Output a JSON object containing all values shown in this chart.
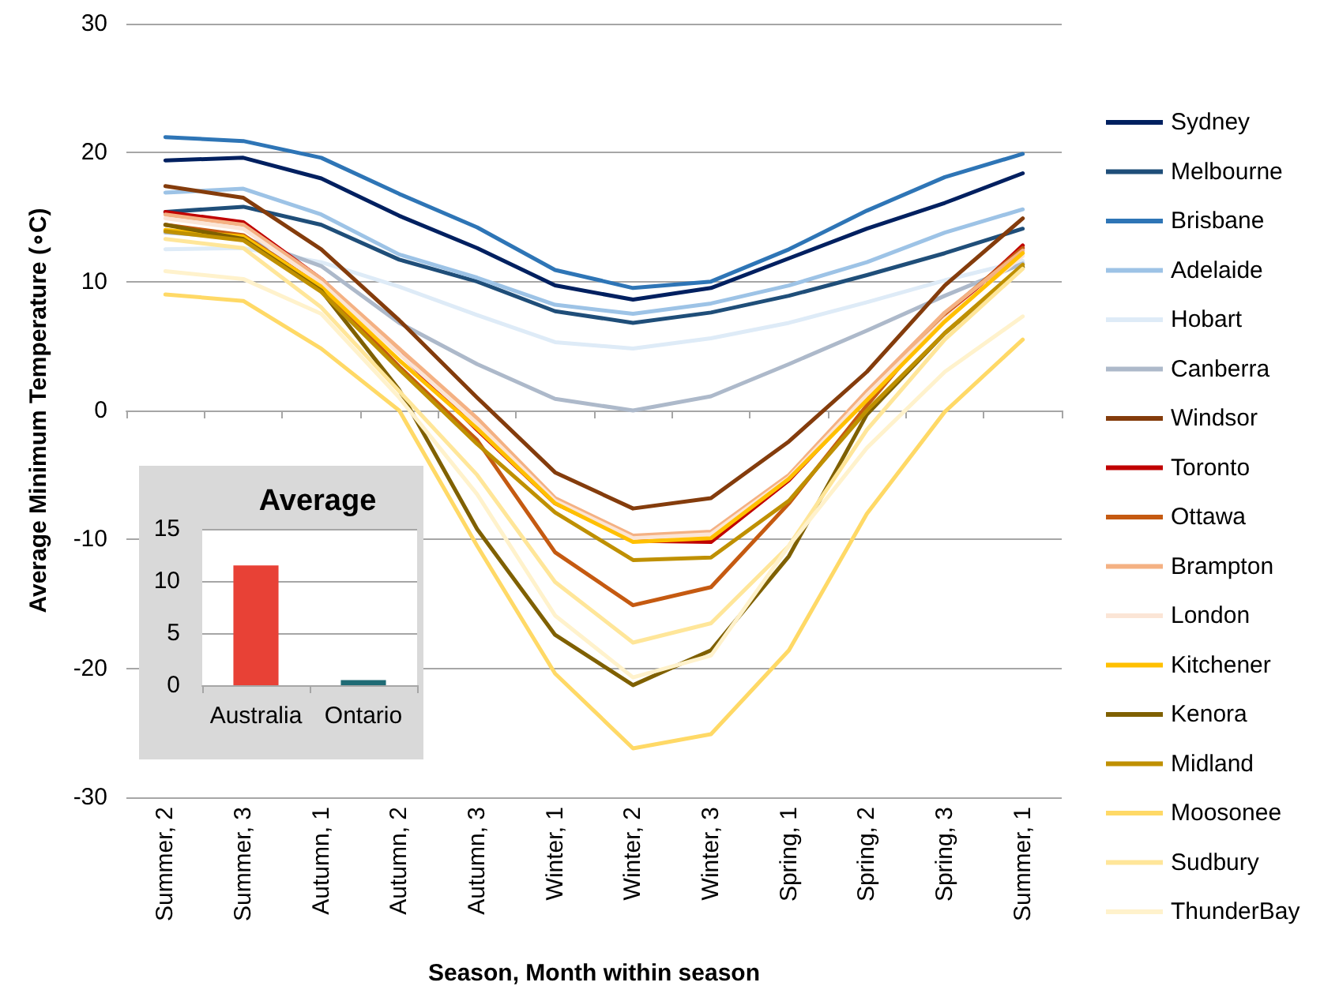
{
  "chart_data": [
    {
      "type": "line",
      "xlabel": "Season, Month within season",
      "ylabel": "Average Minimum Temperature (∘C)",
      "categories": [
        "Summer, 2",
        "Summer, 3",
        "Autumn, 1",
        "Autumn, 2",
        "Autumn, 3",
        "Winter, 1",
        "Winter, 2",
        "Winter, 3",
        "Spring, 1",
        "Spring, 2",
        "Spring, 3",
        "Summer, 1"
      ],
      "series": [
        {
          "name": "Sydney",
          "color": "#002060",
          "values": [
            19.4,
            19.6,
            18.0,
            15.1,
            12.6,
            9.7,
            8.6,
            9.5,
            11.8,
            14.1,
            16.1,
            18.4
          ]
        },
        {
          "name": "Melbourne",
          "color": "#1f4e79",
          "values": [
            15.4,
            15.8,
            14.4,
            11.7,
            10.0,
            7.7,
            6.8,
            7.6,
            8.9,
            10.5,
            12.2,
            14.1
          ]
        },
        {
          "name": "Brisbane",
          "color": "#2e75b6",
          "values": [
            21.2,
            20.9,
            19.6,
            16.8,
            14.2,
            10.9,
            9.5,
            10.0,
            12.5,
            15.5,
            18.1,
            19.9
          ]
        },
        {
          "name": "Adelaide",
          "color": "#9dc3e6",
          "values": [
            16.9,
            17.2,
            15.2,
            12.1,
            10.3,
            8.2,
            7.5,
            8.3,
            9.7,
            11.5,
            13.8,
            15.6
          ]
        },
        {
          "name": "Hobart",
          "color": "#deebf7",
          "values": [
            12.5,
            12.6,
            11.5,
            9.6,
            7.4,
            5.3,
            4.8,
            5.6,
            6.8,
            8.4,
            10.1,
            11.6
          ]
        },
        {
          "name": "Canberra",
          "color": "#adb9ca",
          "values": [
            13.8,
            13.4,
            11.2,
            6.8,
            3.6,
            0.9,
            0.0,
            1.1,
            3.6,
            6.2,
            8.9,
            11.4
          ]
        },
        {
          "name": "Windsor",
          "color": "#843c0c",
          "values": [
            17.4,
            16.5,
            12.5,
            7.0,
            1.0,
            -4.8,
            -7.6,
            -6.8,
            -2.4,
            3.0,
            9.7,
            14.9
          ]
        },
        {
          "name": "Toronto",
          "color": "#c00000",
          "values": [
            15.4,
            14.6,
            10.2,
            4.5,
            -1.5,
            -7.2,
            -10.1,
            -10.2,
            -5.4,
            1.0,
            7.2,
            12.8
          ]
        },
        {
          "name": "Ottawa",
          "color": "#c55a11",
          "values": [
            14.4,
            13.6,
            9.6,
            3.4,
            -2.3,
            -11.0,
            -15.1,
            -13.7,
            -7.2,
            0.4,
            7.5,
            12.6
          ]
        },
        {
          "name": "Brampton",
          "color": "#f4b183",
          "values": [
            15.2,
            14.4,
            10.2,
            4.8,
            -0.6,
            -6.8,
            -9.7,
            -9.4,
            -5.0,
            1.5,
            7.6,
            12.4
          ]
        },
        {
          "name": "London",
          "color": "#fbe5d6",
          "values": [
            14.9,
            14.1,
            9.9,
            4.4,
            -1.0,
            -7.0,
            -9.9,
            -9.6,
            -5.2,
            1.2,
            7.1,
            12.0
          ]
        },
        {
          "name": "Kitchener",
          "color": "#ffc000",
          "values": [
            14.0,
            13.5,
            9.6,
            3.9,
            -1.4,
            -7.2,
            -10.2,
            -9.9,
            -5.3,
            0.8,
            6.9,
            12.2
          ]
        },
        {
          "name": "Kenora",
          "color": "#7f6000",
          "values": [
            14.4,
            13.3,
            9.3,
            1.6,
            -9.2,
            -17.4,
            -21.3,
            -18.6,
            -11.3,
            -0.3,
            6.0,
            11.1
          ]
        },
        {
          "name": "Midland",
          "color": "#bf9000",
          "values": [
            13.9,
            13.2,
            9.2,
            3.2,
            -2.6,
            -7.9,
            -11.6,
            -11.4,
            -7.0,
            0.0,
            6.0,
            11.3
          ]
        },
        {
          "name": "Moosonee",
          "color": "#ffd966",
          "values": [
            9.0,
            8.5,
            4.8,
            0.0,
            -10.5,
            -20.4,
            -26.2,
            -25.1,
            -18.6,
            -8.0,
            -0.1,
            5.5
          ]
        },
        {
          "name": "Sudbury",
          "color": "#ffe699",
          "values": [
            13.3,
            12.6,
            8.0,
            1.5,
            -5.0,
            -13.3,
            -18.0,
            -16.5,
            -10.5,
            -1.5,
            5.5,
            11.0
          ]
        },
        {
          "name": "ThunderBay",
          "color": "#fff2cc",
          "values": [
            10.8,
            10.2,
            7.5,
            1.0,
            -6.5,
            -15.9,
            -20.7,
            -19.0,
            -10.5,
            -2.9,
            3.0,
            7.3
          ]
        }
      ],
      "ylim": [
        -30,
        30
      ],
      "yticks": [
        -30,
        -20,
        -10,
        0,
        10,
        20,
        30
      ],
      "grid": "y",
      "legend": "right",
      "marker": "none",
      "line_style": "solid"
    },
    {
      "type": "bar",
      "title": "Average",
      "categories": [
        "Australia",
        "Ontario"
      ],
      "values": [
        11.5,
        0.5
      ],
      "colors": [
        "#e84136",
        "#1f6b75"
      ],
      "ylim": [
        0,
        15
      ],
      "yticks": [
        0,
        5,
        10,
        15
      ],
      "grid": "y"
    }
  ]
}
